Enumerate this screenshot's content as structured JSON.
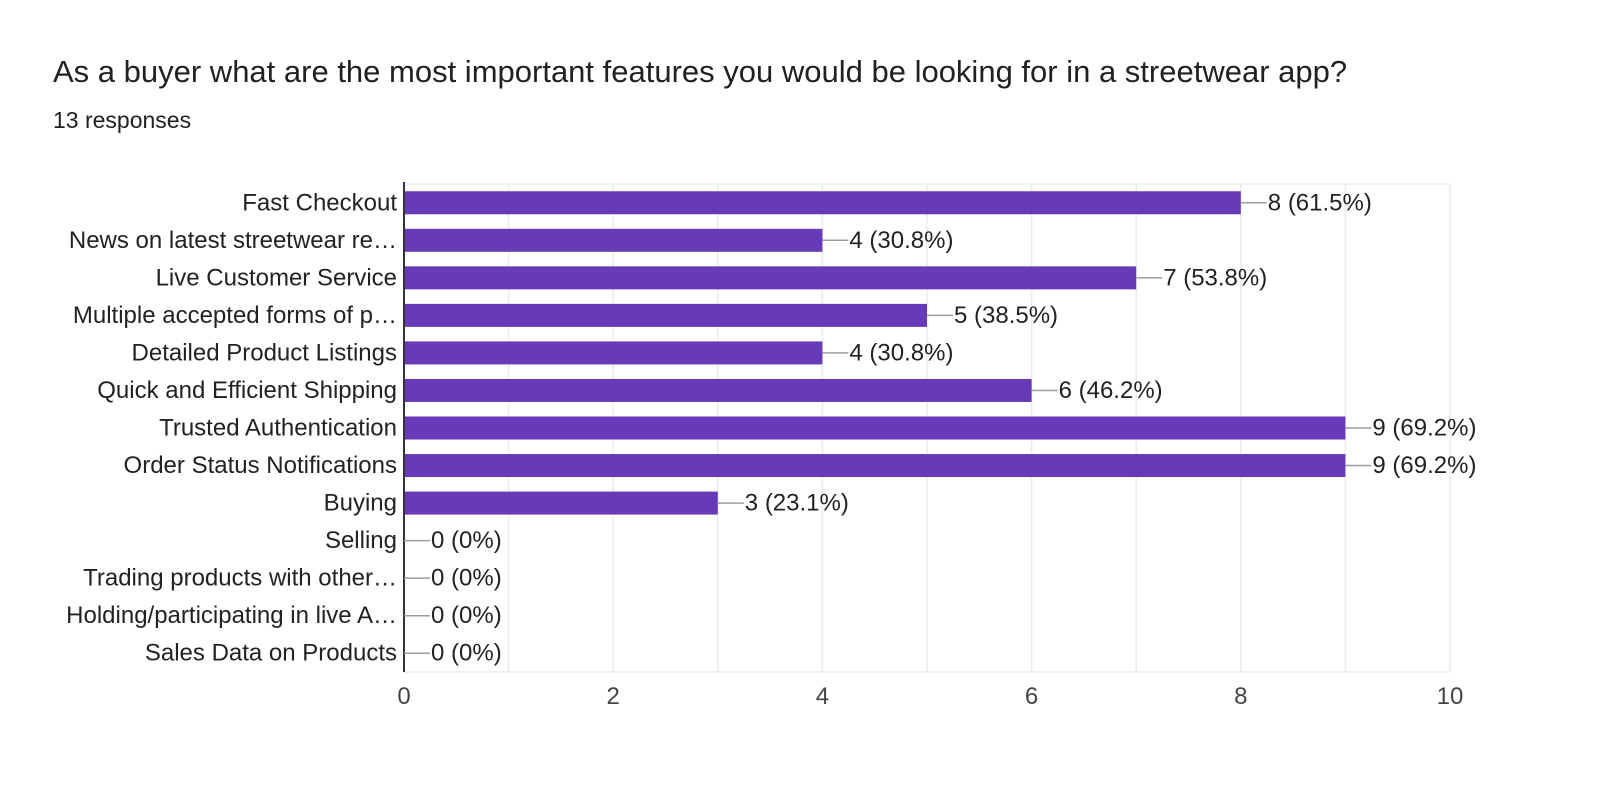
{
  "question": {
    "title": "As a buyer what are the most important features you would be looking for in a streetwear app?",
    "responses": "13 responses"
  },
  "colors": {
    "bar": "#673ab7",
    "grid": "#ebebeb",
    "axis": "#333333",
    "leader": "#9e9e9e"
  },
  "chart_data": {
    "type": "bar",
    "orientation": "horizontal",
    "categories": [
      "Fast Checkout",
      "News on latest streetwear re…",
      "Live Customer Service",
      "Multiple accepted forms of p…",
      "Detailed Product Listings",
      "Quick and Efficient Shipping",
      "Trusted Authentication",
      "Order Status Notifications",
      "Buying",
      "Selling",
      "Trading products with other…",
      "Holding/participating in live A…",
      "Sales Data on Products"
    ],
    "values": [
      8,
      4,
      7,
      5,
      4,
      6,
      9,
      9,
      3,
      0,
      0,
      0,
      0
    ],
    "data_labels": [
      "8 (61.5%)",
      "4 (30.8%)",
      "7 (53.8%)",
      "5 (38.5%)",
      "4 (30.8%)",
      "6 (46.2%)",
      "9 (69.2%)",
      "9 (69.2%)",
      "3 (23.1%)",
      "0 (0%)",
      "0 (0%)",
      "0 (0%)",
      "0 (0%)"
    ],
    "xlim": [
      0,
      10
    ],
    "x_ticks": [
      "0",
      "2",
      "4",
      "6",
      "8",
      "10"
    ],
    "grid": true
  }
}
